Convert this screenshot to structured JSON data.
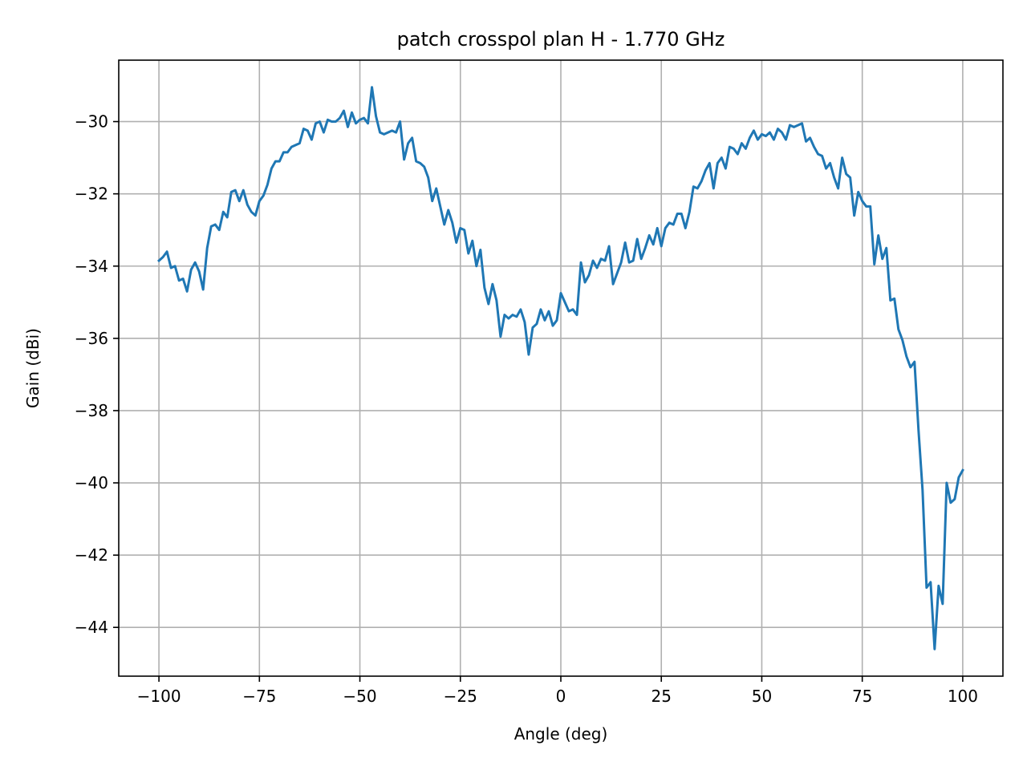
{
  "chart_data": {
    "type": "line",
    "title": "patch crosspol plan H - 1.770 GHz",
    "xlabel": "Angle (deg)",
    "ylabel": "Gain (dBi)",
    "xlim": [
      -110,
      110
    ],
    "ylim": [
      -45.35,
      -28.3
    ],
    "xticks": [
      -100,
      -75,
      -50,
      -25,
      0,
      25,
      50,
      75,
      100
    ],
    "yticks": [
      -44,
      -42,
      -40,
      -38,
      -36,
      -34,
      -32,
      -30
    ],
    "grid": true,
    "line_color": "#1f77b4",
    "series": [
      {
        "x": [
          -100,
          -99,
          -98,
          -97,
          -96,
          -95,
          -94,
          -93,
          -92,
          -91,
          -90,
          -89,
          -88,
          -87,
          -86,
          -85,
          -84,
          -83,
          -82,
          -81,
          -80,
          -79,
          -78,
          -77,
          -76,
          -75,
          -74,
          -73,
          -72,
          -71,
          -70,
          -69,
          -68,
          -67,
          -66,
          -65,
          -64,
          -63,
          -62,
          -61,
          -60,
          -59,
          -58,
          -57,
          -56,
          -55,
          -54,
          -53,
          -52,
          -51,
          -50,
          -49,
          -48,
          -47,
          -46,
          -45,
          -44,
          -43,
          -42,
          -41,
          -40,
          -39,
          -38,
          -37,
          -36,
          -35,
          -34,
          -33,
          -32,
          -31,
          -30,
          -29,
          -28,
          -27,
          -26,
          -25,
          -24,
          -23,
          -22,
          -21,
          -20,
          -19,
          -18,
          -17,
          -16,
          -15,
          -14,
          -13,
          -12,
          -11,
          -10,
          -9,
          -8,
          -7,
          -6,
          -5,
          -4,
          -3,
          -2,
          -1,
          0,
          1,
          2,
          3,
          4,
          5,
          6,
          7,
          8,
          9,
          10,
          11,
          12,
          13,
          14,
          15,
          16,
          17,
          18,
          19,
          20,
          21,
          22,
          23,
          24,
          25,
          26,
          27,
          28,
          29,
          30,
          31,
          32,
          33,
          34,
          35,
          36,
          37,
          38,
          39,
          40,
          41,
          42,
          43,
          44,
          45,
          46,
          47,
          48,
          49,
          50,
          51,
          52,
          53,
          54,
          55,
          56,
          57,
          58,
          59,
          60,
          61,
          62,
          63,
          64,
          65,
          66,
          67,
          68,
          69,
          70,
          71,
          72,
          73,
          74,
          75,
          76,
          77,
          78,
          79,
          80,
          81,
          82,
          83,
          84,
          85,
          86,
          87,
          88,
          89,
          90,
          91,
          92,
          93,
          94,
          95,
          96,
          97,
          98,
          99,
          100
        ],
        "y": [
          -33.85,
          -33.75,
          -33.6,
          -34.05,
          -34.0,
          -34.4,
          -34.35,
          -34.7,
          -34.1,
          -33.9,
          -34.15,
          -34.65,
          -33.5,
          -32.9,
          -32.85,
          -33.0,
          -32.5,
          -32.65,
          -31.95,
          -31.9,
          -32.2,
          -31.9,
          -32.3,
          -32.5,
          -32.6,
          -32.2,
          -32.05,
          -31.75,
          -31.3,
          -31.1,
          -31.1,
          -30.85,
          -30.85,
          -30.7,
          -30.65,
          -30.6,
          -30.2,
          -30.25,
          -30.5,
          -30.05,
          -30.0,
          -30.3,
          -29.95,
          -30.0,
          -30.0,
          -29.9,
          -29.7,
          -30.15,
          -29.75,
          -30.05,
          -29.95,
          -29.9,
          -30.05,
          -29.05,
          -29.85,
          -30.3,
          -30.35,
          -30.3,
          -30.25,
          -30.3,
          -30.0,
          -31.05,
          -30.6,
          -30.45,
          -31.1,
          -31.15,
          -31.25,
          -31.55,
          -32.2,
          -31.85,
          -32.35,
          -32.85,
          -32.45,
          -32.8,
          -33.35,
          -32.95,
          -33.0,
          -33.65,
          -33.3,
          -34.0,
          -33.55,
          -34.6,
          -35.05,
          -34.5,
          -34.95,
          -35.95,
          -35.35,
          -35.45,
          -35.35,
          -35.4,
          -35.2,
          -35.55,
          -36.45,
          -35.7,
          -35.6,
          -35.2,
          -35.5,
          -35.25,
          -35.65,
          -35.5,
          -34.75,
          -35.0,
          -35.25,
          -35.2,
          -35.35,
          -33.9,
          -34.45,
          -34.25,
          -33.85,
          -34.05,
          -33.8,
          -33.85,
          -33.45,
          -34.5,
          -34.2,
          -33.9,
          -33.35,
          -33.9,
          -33.85,
          -33.25,
          -33.8,
          -33.5,
          -33.15,
          -33.4,
          -32.95,
          -33.45,
          -32.95,
          -32.8,
          -32.85,
          -32.55,
          -32.55,
          -32.95,
          -32.5,
          -31.8,
          -31.85,
          -31.65,
          -31.35,
          -31.15,
          -31.85,
          -31.15,
          -31.0,
          -31.3,
          -30.7,
          -30.75,
          -30.9,
          -30.6,
          -30.75,
          -30.45,
          -30.25,
          -30.5,
          -30.35,
          -30.4,
          -30.3,
          -30.5,
          -30.2,
          -30.3,
          -30.5,
          -30.1,
          -30.15,
          -30.1,
          -30.05,
          -30.55,
          -30.45,
          -30.7,
          -30.9,
          -30.95,
          -31.3,
          -31.15,
          -31.55,
          -31.85,
          -31.0,
          -31.45,
          -31.55,
          -32.6,
          -31.95,
          -32.2,
          -32.35,
          -32.35,
          -33.95,
          -33.15,
          -33.8,
          -33.5,
          -34.95,
          -34.9,
          -35.75,
          -36.05,
          -36.5,
          -36.8,
          -36.65,
          -38.55,
          -40.2,
          -42.9,
          -42.75,
          -44.6,
          -42.85,
          -43.35,
          -40.0,
          -40.55,
          -40.45,
          -39.85,
          -39.65
        ]
      }
    ]
  }
}
